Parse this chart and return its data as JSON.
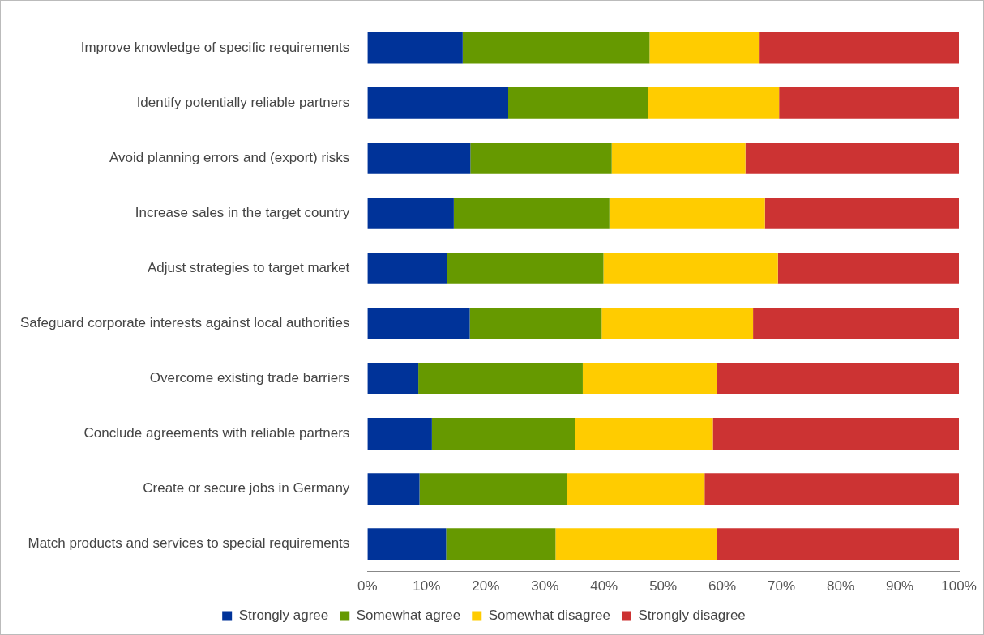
{
  "chart_data": {
    "type": "bar",
    "orientation": "horizontal",
    "stacked": true,
    "categories": [
      "Improve knowledge of specific requirements",
      "Identify potentially reliable partners",
      "Avoid planning errors and (export) risks",
      "Increase sales in the target country",
      "Adjust strategies to target market",
      "Safeguard corporate interests against local authorities",
      "Overcome existing trade barriers",
      "Conclude agreements with reliable partners",
      "Create or secure jobs in Germany",
      "Match products and services to special requirements"
    ],
    "series": [
      {
        "name": "Strongly agree",
        "color": "#003399",
        "values": [
          16.1,
          23.8,
          17.4,
          14.6,
          13.4,
          17.3,
          8.6,
          10.9,
          8.8,
          13.3
        ]
      },
      {
        "name": "Somewhat agree",
        "color": "#669900",
        "values": [
          31.6,
          23.7,
          23.9,
          26.3,
          26.5,
          22.3,
          27.8,
          24.2,
          25.0,
          18.5
        ]
      },
      {
        "name": "Somewhat disagree",
        "color": "#ffcc00",
        "values": [
          18.6,
          22.1,
          22.6,
          26.3,
          29.5,
          25.6,
          22.7,
          23.3,
          23.2,
          27.3
        ]
      },
      {
        "name": "Strongly disagree",
        "color": "#cc3333",
        "values": [
          33.7,
          30.4,
          36.1,
          32.8,
          30.6,
          34.8,
          40.9,
          41.6,
          43.0,
          40.9
        ]
      }
    ],
    "xlim": [
      0,
      100
    ],
    "xticks": [
      {
        "value": 0,
        "label": "0%"
      },
      {
        "value": 10,
        "label": "10%"
      },
      {
        "value": 20,
        "label": "20%"
      },
      {
        "value": 30,
        "label": "30%"
      },
      {
        "value": 40,
        "label": "40%"
      },
      {
        "value": 50,
        "label": "50%"
      },
      {
        "value": 60,
        "label": "60%"
      },
      {
        "value": 70,
        "label": "70%"
      },
      {
        "value": 80,
        "label": "80%"
      },
      {
        "value": 90,
        "label": "90%"
      },
      {
        "value": 100,
        "label": "100%"
      }
    ],
    "grid": false,
    "legend": "bottom"
  }
}
